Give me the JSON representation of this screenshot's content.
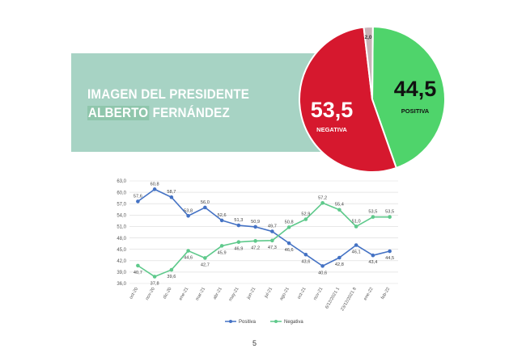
{
  "banner": {
    "title_line1": "IMAGEN DEL PRESIDENTE",
    "title_name_first": "ALBERTO",
    "title_name_last": "FERNÁNDEZ"
  },
  "chart_data": [
    {
      "type": "pie",
      "slices": [
        {
          "label": "POSITIVA",
          "value": 44.5,
          "display": "44,5",
          "color": "#4fd46b"
        },
        {
          "label": "NEGATIVA",
          "value": 53.5,
          "display": "53,5",
          "color": "#d6182e"
        },
        {
          "label": "",
          "value": 2.0,
          "display": "2,0",
          "color": "#c8b4b8"
        }
      ]
    },
    {
      "type": "line",
      "categories": [
        "oct-20",
        "nov-20",
        "dic-20",
        "ene-21",
        "mar-21",
        "abr-21",
        "may-21",
        "jun-21",
        "jul-21",
        "ago-21",
        "oct-21",
        "nov-21",
        "6/12/2021 1",
        "23/12/2021 8",
        "ene-22",
        "feb-22"
      ],
      "series": [
        {
          "name": "Positiva",
          "color": "#4472c4",
          "values": [
            57.6,
            60.8,
            58.7,
            53.8,
            56.0,
            52.6,
            51.3,
            50.9,
            49.7,
            46.6,
            43.6,
            40.6,
            42.8,
            46.1,
            43.4,
            44.5
          ],
          "labels": [
            "57,6",
            "60,8",
            "58,7",
            "53,8",
            "56,0",
            "52,6",
            "51,3",
            "50,9",
            "49,7",
            "46,6",
            "43,6",
            "40,6",
            "42,8",
            "46,1",
            "43,4",
            "44,5"
          ]
        },
        {
          "name": "Negativa",
          "color": "#5ec98b",
          "values": [
            40.7,
            37.8,
            39.6,
            44.6,
            42.7,
            45.9,
            46.9,
            47.2,
            47.3,
            50.8,
            52.9,
            57.2,
            55.4,
            51.0,
            53.5,
            53.5
          ],
          "labels": [
            "40,7",
            "37,8",
            "39,6",
            "44,6",
            "42,7",
            "45,9",
            "46,9",
            "47,2",
            "47,3",
            "50,8",
            "52,9",
            "57,2",
            "55,4",
            "51,0",
            "53,5",
            "53,5"
          ]
        }
      ],
      "yticks": [
        "63,0",
        "60,0",
        "57,0",
        "54,0",
        "51,0",
        "48,0",
        "45,0",
        "42,0",
        "39,0",
        "36,0"
      ],
      "ylim": [
        36,
        63
      ],
      "grid": true,
      "legend": "bottom"
    }
  ],
  "page_number": "5"
}
